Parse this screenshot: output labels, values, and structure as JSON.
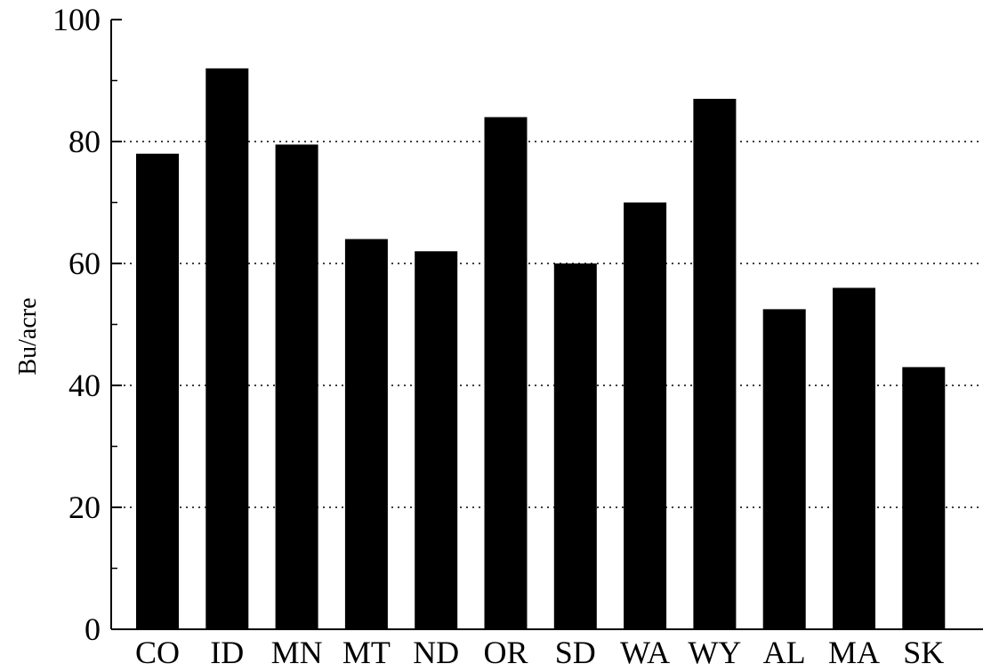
{
  "chart_data": {
    "type": "bar",
    "title": "",
    "xlabel": "",
    "ylabel": "Bu/acre",
    "ylim": [
      0,
      100
    ],
    "yticks": [
      0,
      20,
      40,
      60,
      80,
      100
    ],
    "grid": "horizontal dotted lines at y ticks",
    "categories": [
      "CO",
      "ID",
      "MN",
      "MT",
      "ND",
      "OR",
      "SD",
      "WA",
      "WY",
      "AL",
      "MA",
      "SK"
    ],
    "values": [
      78,
      92,
      79.5,
      64,
      62,
      84,
      60,
      70,
      87,
      52.5,
      56,
      43
    ],
    "colors": {
      "bar": "#000000",
      "grid": "#000000",
      "axis": "#000000",
      "background": "#ffffff"
    }
  }
}
